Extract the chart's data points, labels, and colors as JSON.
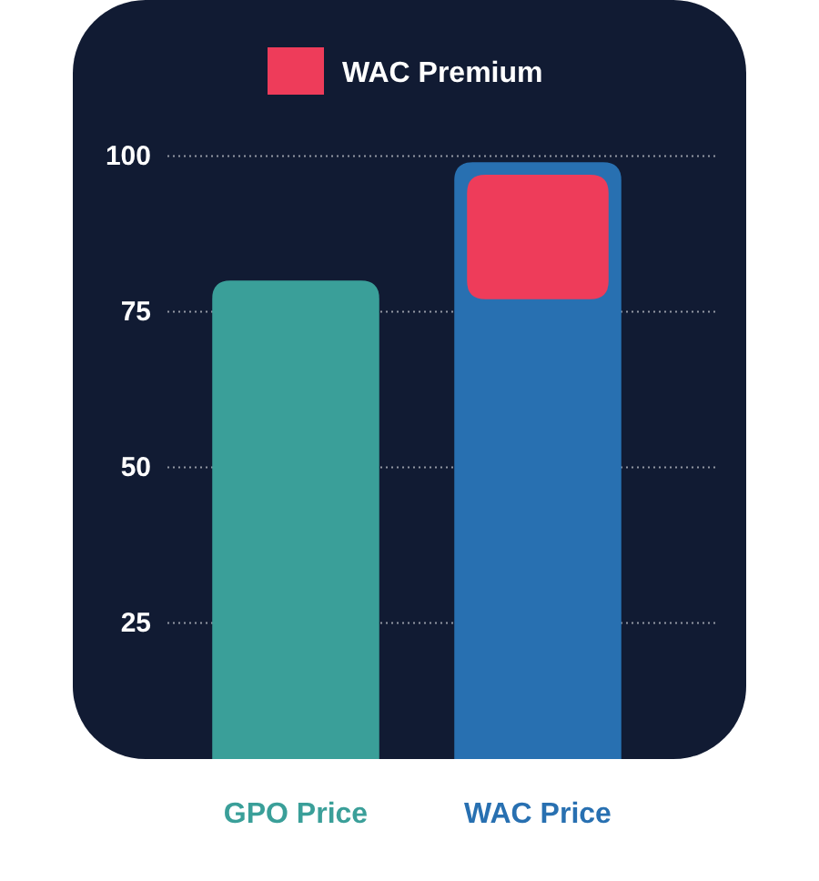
{
  "chart_data": {
    "type": "bar",
    "categories": [
      "GPO Price",
      "WAC Price"
    ],
    "series": [
      {
        "colors": [
          "#3a9f99",
          "#2870b1"
        ],
        "values": [
          80,
          99
        ]
      },
      {
        "name": "WAC Premium",
        "color": "#ee3c5a",
        "values": [
          null,
          20
        ],
        "base": [
          null,
          77
        ]
      }
    ],
    "ylim": [
      0,
      100
    ],
    "yticks": [
      25,
      50,
      75,
      100
    ],
    "grid": "y",
    "legend": "top"
  }
}
